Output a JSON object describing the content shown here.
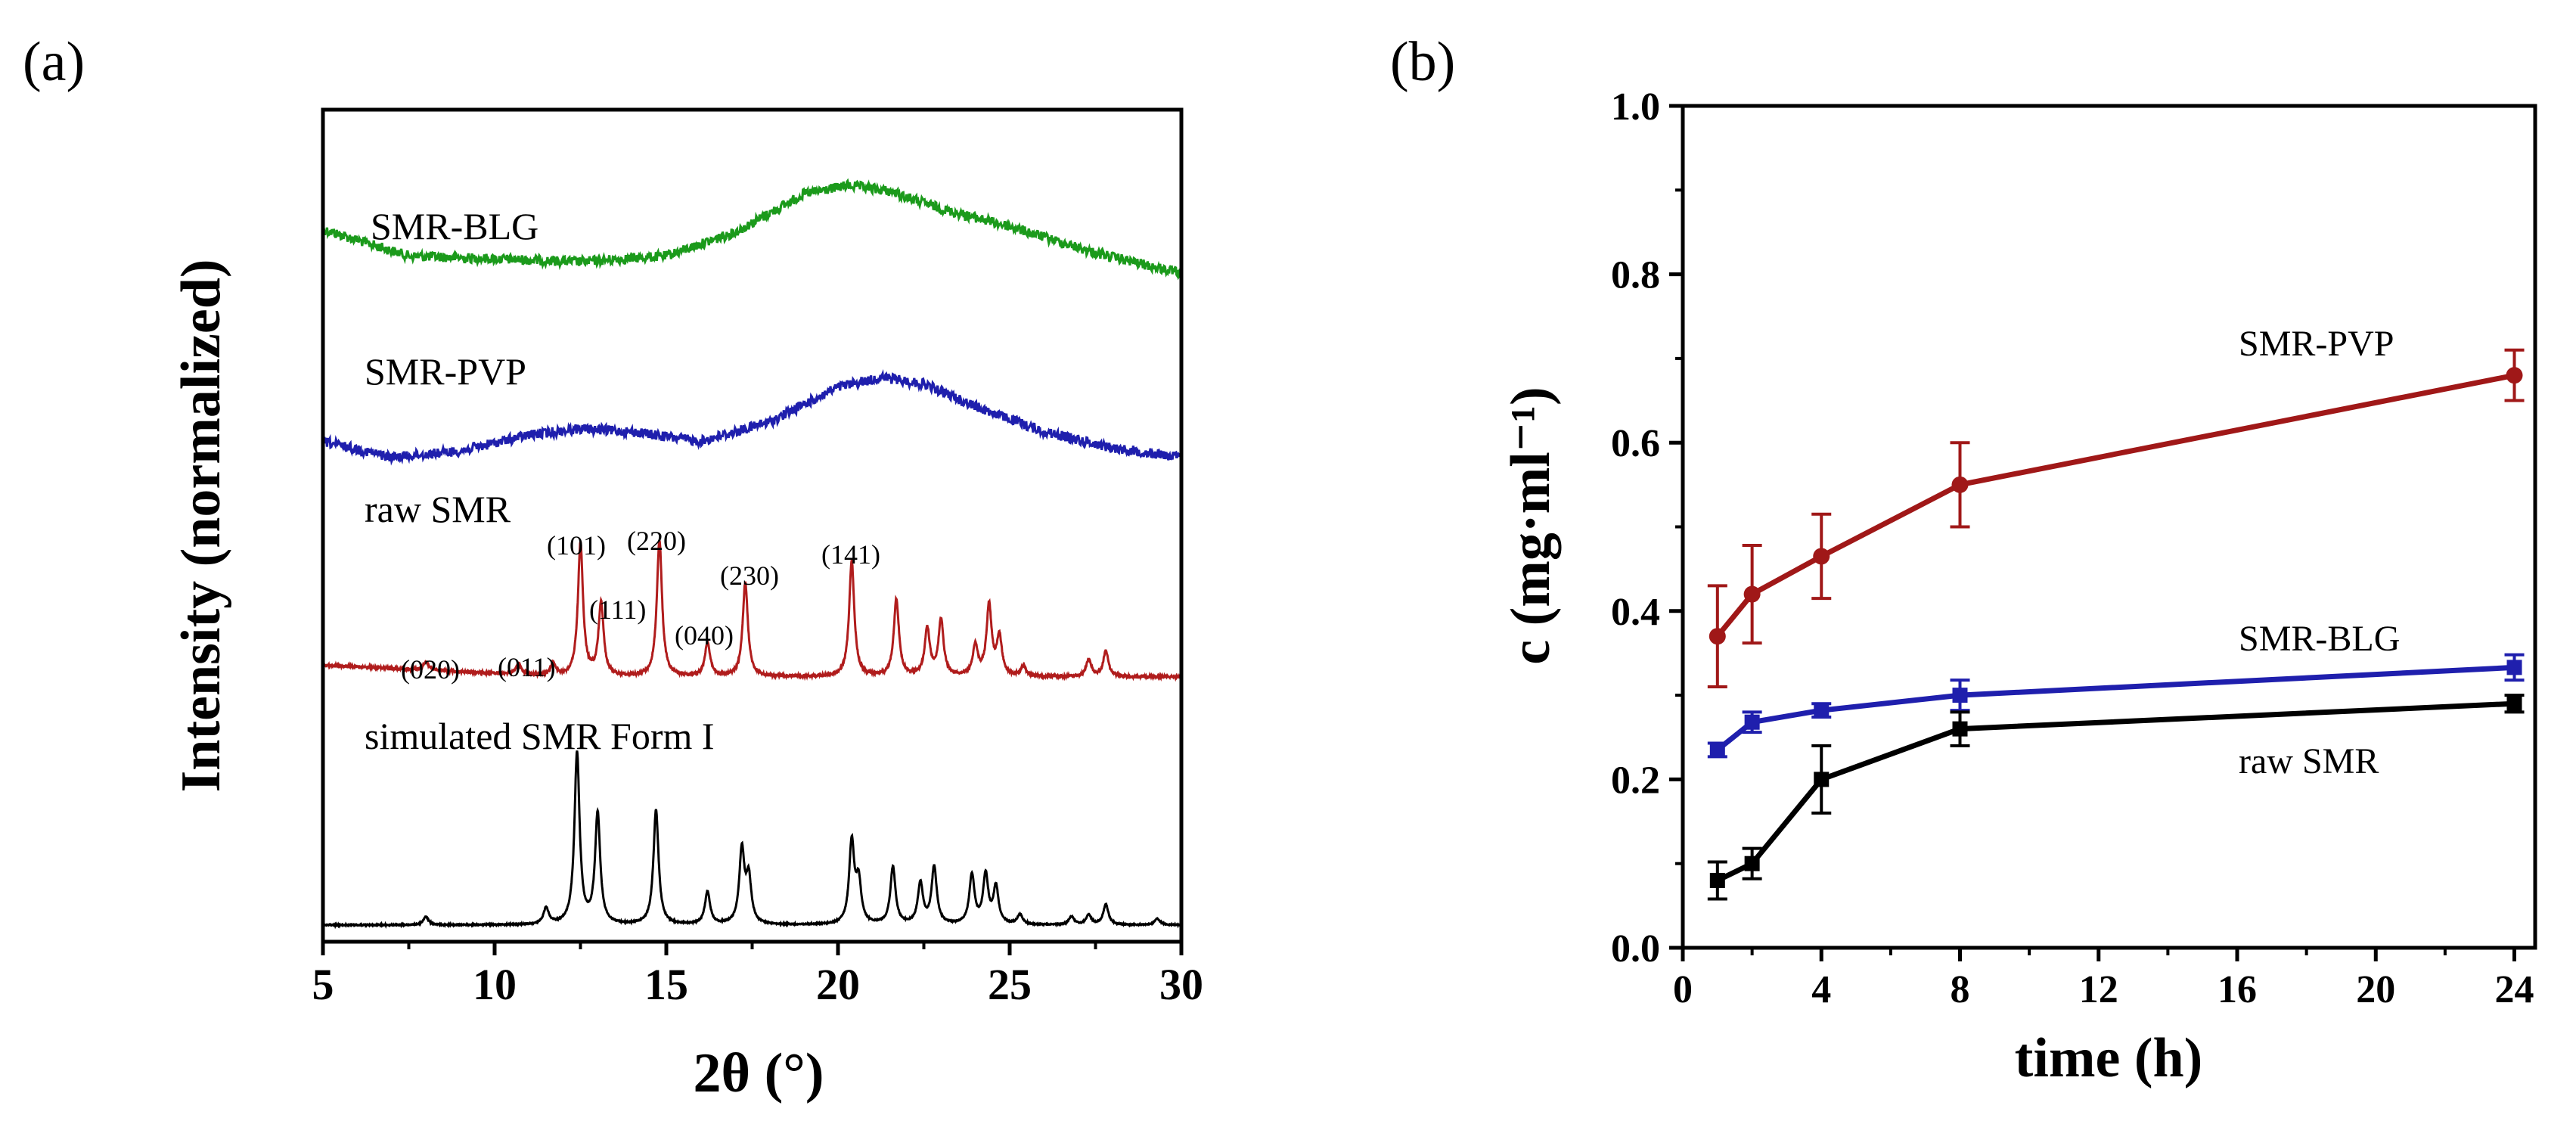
{
  "chart_data": [
    {
      "panel": "(a)",
      "type": "line",
      "title": "",
      "xlabel": "2θ (°)",
      "ylabel": "Intensity (normalized)",
      "xlim": [
        5,
        30
      ],
      "xticks": [
        5,
        10,
        15,
        20,
        25,
        30
      ],
      "yticks": [],
      "grid": false,
      "colors": {
        "blg": "#1b9a1b",
        "pvp": "#1f1fad",
        "raw": "#b01c1c",
        "sim": "#000000"
      },
      "series": [
        {
          "key": "blg",
          "name": "SMR-BLG",
          "pattern": "amorphous halo",
          "profile": [
            [
              5,
              0.85
            ],
            [
              7.5,
              0.76
            ],
            [
              10,
              0.75
            ],
            [
              12.5,
              0.74
            ],
            [
              15,
              0.76
            ],
            [
              17,
              0.84
            ],
            [
              19,
              0.97
            ],
            [
              20.3,
              1.0
            ],
            [
              21.5,
              0.98
            ],
            [
              23,
              0.92
            ],
            [
              25,
              0.86
            ],
            [
              27.5,
              0.77
            ],
            [
              30,
              0.7
            ]
          ]
        },
        {
          "key": "pvp",
          "name": "SMR-PVP",
          "pattern": "amorphous halo",
          "profile": [
            [
              5,
              0.66
            ],
            [
              7,
              0.61
            ],
            [
              9,
              0.63
            ],
            [
              11,
              0.68
            ],
            [
              12.5,
              0.7
            ],
            [
              14,
              0.69
            ],
            [
              16,
              0.66
            ],
            [
              18,
              0.72
            ],
            [
              20,
              0.83
            ],
            [
              21.3,
              0.86
            ],
            [
              22.5,
              0.84
            ],
            [
              24,
              0.77
            ],
            [
              26,
              0.69
            ],
            [
              28,
              0.64
            ],
            [
              30,
              0.61
            ]
          ]
        },
        {
          "key": "raw",
          "name": "raw SMR",
          "pattern": "crystalline",
          "peaks": [
            [
              8.0,
              0.01
            ],
            [
              10.7,
              0.012
            ],
            [
              11.7,
              0.014
            ],
            [
              12.5,
              0.155
            ],
            [
              13.1,
              0.085
            ],
            [
              14.8,
              0.16
            ],
            [
              16.2,
              0.04
            ],
            [
              17.3,
              0.11
            ],
            [
              20.4,
              0.135
            ],
            [
              21.7,
              0.09
            ],
            [
              22.6,
              0.055
            ],
            [
              23.0,
              0.065
            ],
            [
              24.0,
              0.035
            ],
            [
              24.4,
              0.082
            ],
            [
              24.7,
              0.045
            ],
            [
              25.4,
              0.012
            ],
            [
              27.3,
              0.02
            ],
            [
              27.8,
              0.03
            ]
          ]
        },
        {
          "key": "sim",
          "name": "simulated SMR Form I",
          "pattern": "crystalline",
          "peaks": [
            [
              8.0,
              0.01
            ],
            [
              11.5,
              0.02
            ],
            [
              12.4,
              0.21
            ],
            [
              13.0,
              0.135
            ],
            [
              14.7,
              0.14
            ],
            [
              16.2,
              0.04
            ],
            [
              17.2,
              0.09
            ],
            [
              17.4,
              0.055
            ],
            [
              20.4,
              0.1
            ],
            [
              20.6,
              0.05
            ],
            [
              21.6,
              0.07
            ],
            [
              22.4,
              0.05
            ],
            [
              22.8,
              0.07
            ],
            [
              23.9,
              0.06
            ],
            [
              24.3,
              0.06
            ],
            [
              24.6,
              0.045
            ],
            [
              25.3,
              0.012
            ],
            [
              26.8,
              0.01
            ],
            [
              27.3,
              0.012
            ],
            [
              27.8,
              0.025
            ],
            [
              29.3,
              0.008
            ]
          ]
        }
      ],
      "annotations": [
        "(020)",
        "(011)",
        "(101)",
        "(111)",
        "(220)",
        "(040)",
        "(230)",
        "(141)"
      ]
    },
    {
      "panel": "(b)",
      "type": "line",
      "title": "",
      "xlabel": "time (h)",
      "ylabel": "c (mg·ml⁻¹)",
      "xlim": [
        0,
        24.6
      ],
      "ylim": [
        0,
        1.0
      ],
      "xticks": [
        0,
        4,
        8,
        12,
        16,
        20,
        24
      ],
      "xtick_labels": [
        "0",
        "4",
        "8",
        "12",
        "16",
        "20",
        "24"
      ],
      "yticks": [
        0.0,
        0.2,
        0.4,
        0.6,
        0.8,
        1.0
      ],
      "ytick_labels": [
        "0.0",
        "0.2",
        "0.4",
        "0.6",
        "0.8",
        "1.0"
      ],
      "grid": false,
      "x": [
        1,
        2,
        4,
        8,
        24
      ],
      "series": [
        {
          "key": "pvp",
          "name": "SMR-PVP",
          "color": "#a01818",
          "marker": "circle",
          "values": [
            0.37,
            0.42,
            0.465,
            0.55,
            0.68
          ],
          "errors": [
            0.06,
            0.058,
            0.05,
            0.05,
            0.03
          ]
        },
        {
          "key": "blg",
          "name": "SMR-BLG",
          "color": "#1f1fad",
          "marker": "square",
          "values": [
            0.235,
            0.268,
            0.282,
            0.3,
            0.333
          ],
          "errors": [
            0.008,
            0.012,
            0.008,
            0.018,
            0.015
          ]
        },
        {
          "key": "raw",
          "name": "raw SMR",
          "color": "#000000",
          "marker": "square",
          "values": [
            0.08,
            0.1,
            0.2,
            0.26,
            0.29
          ],
          "errors": [
            0.022,
            0.018,
            0.04,
            0.02,
            0.01
          ]
        }
      ]
    }
  ]
}
